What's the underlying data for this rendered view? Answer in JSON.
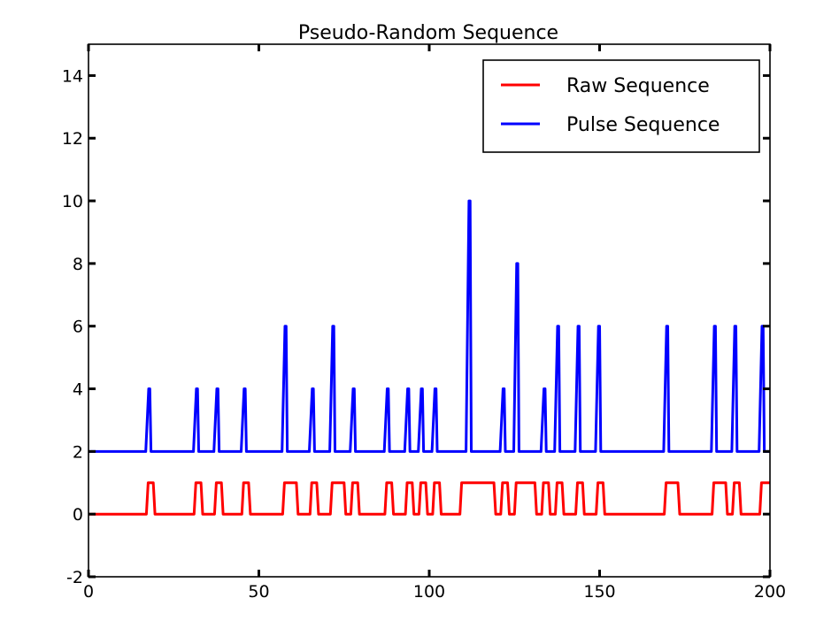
{
  "chart_data": {
    "type": "line",
    "title": "Pseudo-Random Sequence",
    "xlabel": "",
    "ylabel": "",
    "xlim": [
      0,
      200
    ],
    "ylim": [
      -2,
      15
    ],
    "x_ticks": [
      "0",
      "50",
      "100",
      "150",
      "200"
    ],
    "y_ticks": [
      "-2",
      "0",
      "2",
      "4",
      "6",
      "8",
      "10",
      "12",
      "14"
    ],
    "grid": false,
    "legend_position": "top-right",
    "series": [
      {
        "name": "Raw Sequence",
        "color": "#ff0000",
        "points": [
          [
            0,
            0
          ],
          [
            17,
            0
          ],
          [
            17.5,
            1
          ],
          [
            19,
            1
          ],
          [
            19.5,
            0
          ],
          [
            31,
            0
          ],
          [
            31.5,
            1
          ],
          [
            33,
            1
          ],
          [
            33.5,
            0
          ],
          [
            37,
            0
          ],
          [
            37.5,
            1
          ],
          [
            39,
            1
          ],
          [
            39.5,
            0
          ],
          [
            45,
            0
          ],
          [
            45.5,
            1
          ],
          [
            47,
            1
          ],
          [
            47.5,
            0
          ],
          [
            57,
            0
          ],
          [
            57.5,
            1
          ],
          [
            61,
            1
          ],
          [
            61.5,
            0
          ],
          [
            65,
            0
          ],
          [
            65.5,
            1
          ],
          [
            67,
            1
          ],
          [
            67.5,
            0
          ],
          [
            71,
            0
          ],
          [
            71.5,
            1
          ],
          [
            75,
            1
          ],
          [
            75.5,
            0
          ],
          [
            77,
            0
          ],
          [
            77.5,
            1
          ],
          [
            79,
            1
          ],
          [
            79.5,
            0
          ],
          [
            87,
            0
          ],
          [
            87.5,
            1
          ],
          [
            89,
            1
          ],
          [
            89.5,
            0
          ],
          [
            93,
            0
          ],
          [
            93.5,
            1
          ],
          [
            95,
            1
          ],
          [
            95.5,
            0
          ],
          [
            97,
            0
          ],
          [
            97.5,
            1
          ],
          [
            99,
            1
          ],
          [
            99.5,
            0
          ],
          [
            101,
            0
          ],
          [
            101.5,
            1
          ],
          [
            103,
            1
          ],
          [
            103.5,
            0
          ],
          [
            109,
            0
          ],
          [
            109.5,
            1
          ],
          [
            119,
            1
          ],
          [
            119.5,
            0
          ],
          [
            121,
            0
          ],
          [
            121.5,
            1
          ],
          [
            123,
            1
          ],
          [
            123.5,
            0
          ],
          [
            125,
            0
          ],
          [
            125.5,
            1
          ],
          [
            131,
            1
          ],
          [
            131.5,
            0
          ],
          [
            133,
            0
          ],
          [
            133.5,
            1
          ],
          [
            135,
            1
          ],
          [
            135.5,
            0
          ],
          [
            137,
            0
          ],
          [
            137.5,
            1
          ],
          [
            139,
            1
          ],
          [
            139.5,
            0
          ],
          [
            143,
            0
          ],
          [
            143.5,
            1
          ],
          [
            145,
            1
          ],
          [
            145.5,
            0
          ],
          [
            149,
            0
          ],
          [
            149.5,
            1
          ],
          [
            151,
            1
          ],
          [
            151.5,
            0
          ],
          [
            169,
            0
          ],
          [
            169.5,
            1
          ],
          [
            173,
            1
          ],
          [
            173.5,
            0
          ],
          [
            183,
            0
          ],
          [
            183.5,
            1
          ],
          [
            187,
            1
          ],
          [
            187.5,
            0
          ],
          [
            189,
            0
          ],
          [
            189.5,
            1
          ],
          [
            191,
            1
          ],
          [
            191.5,
            0
          ],
          [
            197,
            0
          ],
          [
            197.5,
            1
          ],
          [
            200,
            1
          ]
        ]
      },
      {
        "name": "Pulse Sequence",
        "color": "#0000ff",
        "baseline": 2,
        "pulses": [
          [
            18,
            4
          ],
          [
            32,
            4
          ],
          [
            38,
            4
          ],
          [
            46,
            4
          ],
          [
            58,
            6
          ],
          [
            66,
            4
          ],
          [
            72,
            6
          ],
          [
            78,
            4
          ],
          [
            88,
            4
          ],
          [
            94,
            4
          ],
          [
            98,
            4
          ],
          [
            102,
            4
          ],
          [
            112,
            10
          ],
          [
            122,
            4
          ],
          [
            126,
            8
          ],
          [
            134,
            4
          ],
          [
            138,
            6
          ],
          [
            144,
            6
          ],
          [
            150,
            6
          ],
          [
            170,
            6
          ],
          [
            184,
            6
          ],
          [
            190,
            6
          ],
          [
            198,
            6
          ]
        ]
      }
    ]
  }
}
